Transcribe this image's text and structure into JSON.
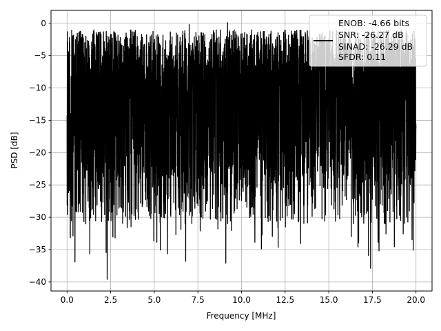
{
  "chart_data": {
    "type": "line",
    "title": "",
    "xlabel": "Frequency [MHz]",
    "ylabel": "PSD [dB]",
    "xlim": [
      -0.92,
      20.92
    ],
    "ylim": [
      -41.4,
      2.0
    ],
    "xticks": [
      0.0,
      2.5,
      5.0,
      7.5,
      10.0,
      12.5,
      15.0,
      17.5,
      20.0
    ],
    "xtick_labels": [
      "0.0",
      "2.5",
      "5.0",
      "7.5",
      "10.0",
      "12.5",
      "15.0",
      "17.5",
      "20.0"
    ],
    "yticks": [
      0,
      -5,
      -10,
      -15,
      -20,
      -25,
      -30,
      -35,
      -40
    ],
    "ytick_labels": [
      "0",
      "−5",
      "−10",
      "−15",
      "−20",
      "−25",
      "−30",
      "−35",
      "−40"
    ],
    "grid": true,
    "legend_position": "top-right",
    "line_color": "#000000",
    "series": [
      {
        "name": "ENOB: -4.66 bits\nSNR: -26.27 dB\nSINAD: -26.29 dB\nSFDR: 0.11",
        "x_range": [
          0.0,
          20.0
        ],
        "description": "dense noise-like PSD spanning roughly -40 dB to 0 dB",
        "notable_peaks": [
          {
            "x": 0.02,
            "y": -1.3
          },
          {
            "x": 7.0,
            "y": -0.2
          },
          {
            "x": 9.2,
            "y": 0.1
          }
        ],
        "notable_dips": [
          {
            "x": 2.3,
            "y": -39.6
          },
          {
            "x": 9.1,
            "y": -37.1
          },
          {
            "x": 17.4,
            "y": -37.9
          },
          {
            "x": 0.45,
            "y": -36.9
          },
          {
            "x": 6.8,
            "y": -36.8
          }
        ]
      }
    ],
    "legend_lines": [
      "ENOB: -4.66 bits",
      "SNR: -26.27 dB",
      "SINAD: -26.29 dB",
      "SFDR: 0.11"
    ]
  }
}
